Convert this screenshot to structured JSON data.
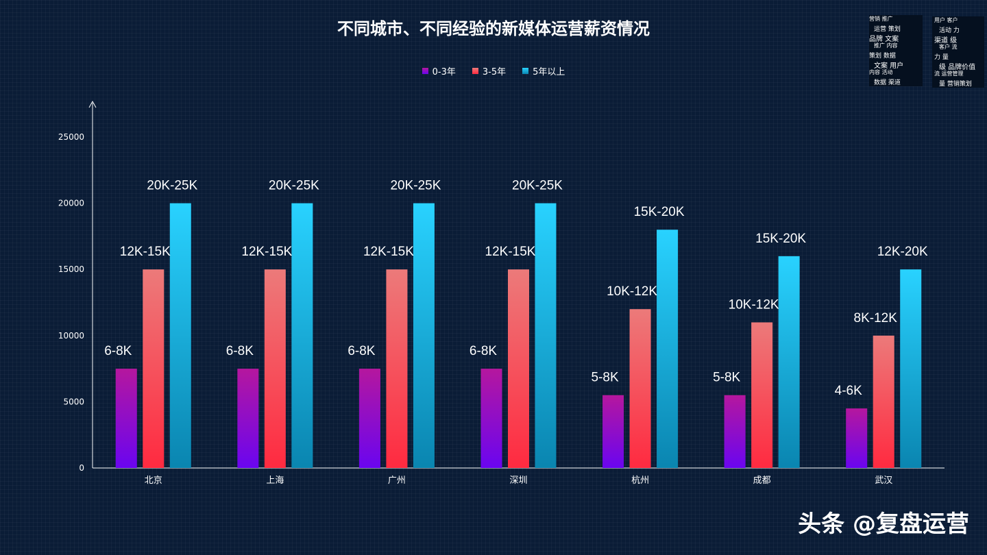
{
  "title": "不同城市、不同经验的新媒体运营薪资情况",
  "watermark": "头条 @复盘运营",
  "wordcloud_words": [
    "营销",
    "运营",
    "品牌",
    "推广",
    "策划",
    "文案",
    "内容",
    "数据",
    "用户",
    "活动",
    "渠道",
    "客户",
    "力",
    "级",
    "流",
    "量",
    "品牌价值",
    "运营管理",
    "营销策划"
  ],
  "colors": {
    "background": "#0a1c36",
    "s1_top": "#b5179e",
    "s1_bottom": "#6a05f0",
    "s2_top": "#ec7a7a",
    "s2_bottom": "#ff2a40",
    "s3_top": "#29d2ff",
    "s3_bottom": "#0a85b0",
    "axis": "#ffffff"
  },
  "chart_data": {
    "type": "bar",
    "title": "不同城市、不同经验的新媒体运营薪资情况",
    "xlabel": "",
    "ylabel": "",
    "ylim": [
      0,
      25000
    ],
    "yticks": [
      0,
      5000,
      10000,
      15000,
      20000,
      25000
    ],
    "grid": false,
    "legend_position": "top",
    "categories": [
      "北京",
      "上海",
      "广州",
      "深圳",
      "杭州",
      "成都",
      "武汉"
    ],
    "series": [
      {
        "name": "0-3年",
        "values": [
          7500,
          7500,
          7500,
          7500,
          5500,
          5500,
          4500
        ],
        "labels": [
          "6-8K",
          "6-8K",
          "6-8K",
          "6-8K",
          "5-8K",
          "5-8K",
          "4-6K"
        ]
      },
      {
        "name": "3-5年",
        "values": [
          15000,
          15000,
          15000,
          15000,
          12000,
          11000,
          10000
        ],
        "labels": [
          "12K-15K",
          "12K-15K",
          "12K-15K",
          "12K-15K",
          "10K-12K",
          "10K-12K",
          "8K-12K"
        ]
      },
      {
        "name": "5年以上",
        "values": [
          20000,
          20000,
          20000,
          20000,
          18000,
          16000,
          15000
        ],
        "labels": [
          "20K-25K",
          "20K-25K",
          "20K-25K",
          "20K-25K",
          "15K-20K",
          "15K-20K",
          "12K-20K"
        ]
      }
    ]
  }
}
